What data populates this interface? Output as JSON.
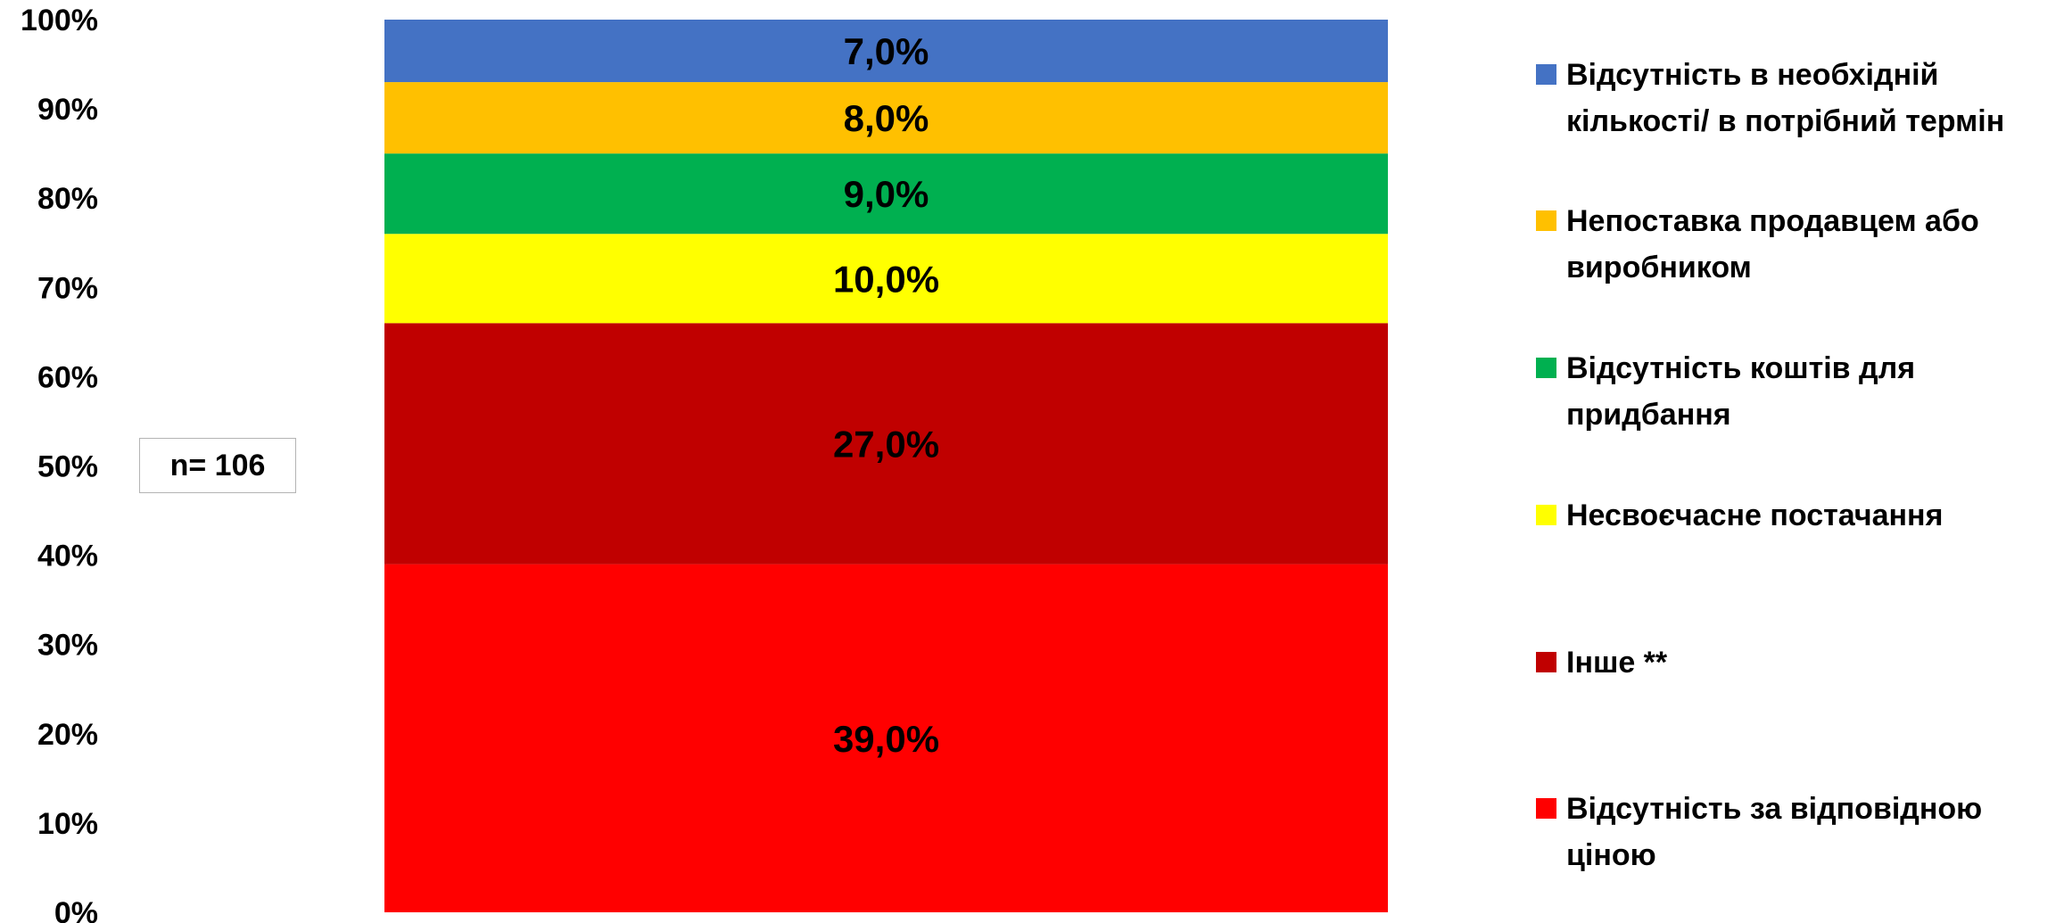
{
  "chart_data": {
    "type": "bar",
    "stacked": true,
    "categories": [
      ""
    ],
    "y_ticks": [
      "0%",
      "10%",
      "20%",
      "30%",
      "40%",
      "50%",
      "60%",
      "70%",
      "80%",
      "90%",
      "100%"
    ],
    "ylim": [
      0,
      100
    ],
    "grid": false,
    "legend_position": "right",
    "series": [
      {
        "name": "Відсутність за відповідною\nціною",
        "value": 39.0,
        "label": "39,0%",
        "color": "#FF0000"
      },
      {
        "name": "Інше **",
        "value": 27.0,
        "label": "27,0%",
        "color": "#C00000"
      },
      {
        "name": "Несвоєчасне постачання",
        "value": 10.0,
        "label": "10,0%",
        "color": "#FFFF00"
      },
      {
        "name": "Відсутність коштів для\nпридбання",
        "value": 9.0,
        "label": "9,0%",
        "color": "#00B050"
      },
      {
        "name": "Непоставка продавцем або\nвиробником",
        "value": 8.0,
        "label": "8,0%",
        "color": "#FFC000"
      },
      {
        "name": "Відсутність в необхідній\nкількості/ в потрібний термін",
        "value": 7.0,
        "label": "7,0%",
        "color": "#4472C4"
      }
    ],
    "annotation": "n= 106"
  }
}
